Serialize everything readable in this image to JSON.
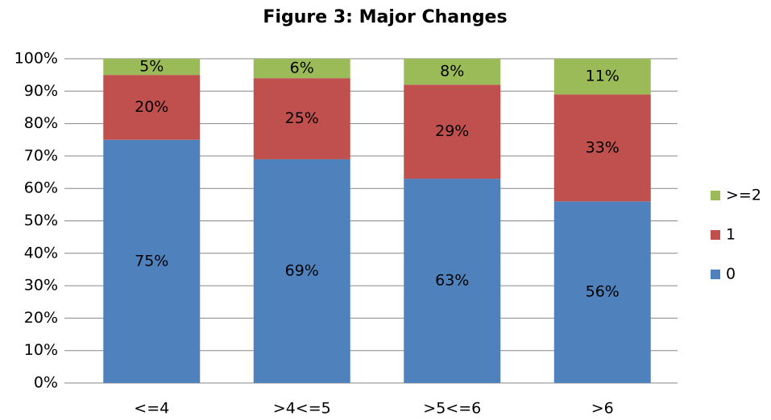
{
  "chart_data": {
    "type": "stacked_bar",
    "title": "Figure 3: Major Changes",
    "categories": [
      "<=4",
      ">4<=5",
      ">5<=6",
      ">6"
    ],
    "series": [
      {
        "name": "0",
        "color": "#4f81bd",
        "values": [
          75,
          69,
          63,
          56
        ],
        "value_labels": [
          "75%",
          "69%",
          "63%",
          "56%"
        ]
      },
      {
        "name": "1",
        "color": "#c0504d",
        "values": [
          20,
          25,
          29,
          33
        ],
        "value_labels": [
          "20%",
          "25%",
          "29%",
          "33%"
        ]
      },
      {
        "name": ">=2",
        "color": "#9bbb59",
        "values": [
          5,
          6,
          8,
          11
        ],
        "value_labels": [
          "5%",
          "6%",
          "8%",
          "11%"
        ]
      }
    ],
    "ylim": [
      0,
      100
    ],
    "yticks": [
      {
        "value": 0,
        "label": "0%"
      },
      {
        "value": 10,
        "label": "10%"
      },
      {
        "value": 20,
        "label": "20%"
      },
      {
        "value": 30,
        "label": "30%"
      },
      {
        "value": 40,
        "label": "40%"
      },
      {
        "value": 50,
        "label": "50%"
      },
      {
        "value": 60,
        "label": "60%"
      },
      {
        "value": 70,
        "label": "70%"
      },
      {
        "value": 80,
        "label": "80%"
      },
      {
        "value": 90,
        "label": "90%"
      },
      {
        "value": 100,
        "label": "100%"
      }
    ],
    "grid": true,
    "legend": "right"
  }
}
